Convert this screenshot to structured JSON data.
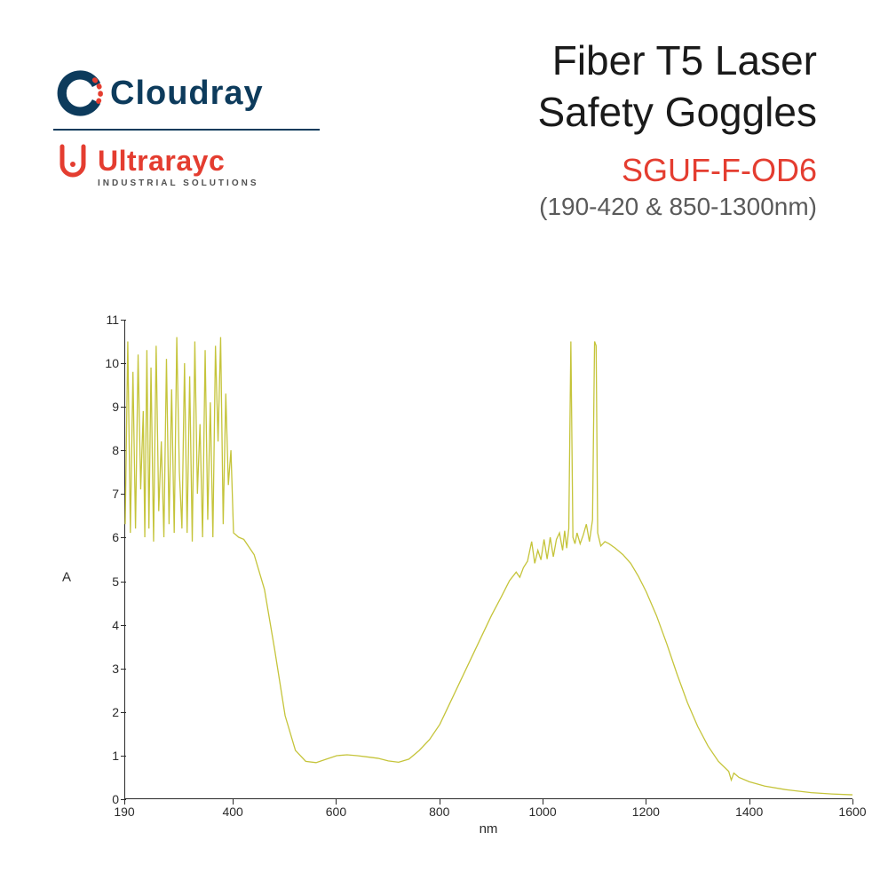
{
  "logos": {
    "cloudray": {
      "text": "Cloudray",
      "color": "#0d3b5c"
    },
    "ultrarayc": {
      "text": "Ultrarayc",
      "sub": "INDUSTRIAL SOLUTIONS",
      "color": "#e43d30"
    }
  },
  "title": {
    "line1": "Fiber T5 Laser",
    "line2": "Safety Goggles"
  },
  "product_code": "SGUF-F-OD6",
  "wavelength": "(190-420 & 850-1300nm)",
  "chart": {
    "type": "line",
    "xlabel": "nm",
    "ylabel": "A",
    "xlim": [
      190,
      1600
    ],
    "ylim": [
      0,
      11
    ],
    "x_ticks": [
      190,
      400,
      600,
      800,
      1000,
      1200,
      1400,
      1600
    ],
    "y_ticks": [
      0,
      1,
      2,
      3,
      4,
      5,
      6,
      7,
      8,
      9,
      10,
      11
    ],
    "line_color": "#c5c43a",
    "line_width": 1.3,
    "axis_color": "#2a2a2a",
    "tick_fontsize": 14,
    "label_fontsize": 15,
    "background_color": "#ffffff",
    "data": [
      [
        190,
        6.3
      ],
      [
        195,
        10.5
      ],
      [
        200,
        6.1
      ],
      [
        205,
        9.8
      ],
      [
        210,
        6.2
      ],
      [
        215,
        10.2
      ],
      [
        220,
        7.1
      ],
      [
        225,
        8.9
      ],
      [
        228,
        6.0
      ],
      [
        232,
        10.3
      ],
      [
        236,
        6.2
      ],
      [
        240,
        9.9
      ],
      [
        245,
        5.9
      ],
      [
        250,
        10.4
      ],
      [
        255,
        6.6
      ],
      [
        260,
        8.2
      ],
      [
        265,
        6.0
      ],
      [
        270,
        10.1
      ],
      [
        275,
        6.3
      ],
      [
        280,
        9.4
      ],
      [
        285,
        6.1
      ],
      [
        290,
        10.6
      ],
      [
        295,
        7.5
      ],
      [
        300,
        6.2
      ],
      [
        305,
        10.0
      ],
      [
        310,
        6.1
      ],
      [
        315,
        9.7
      ],
      [
        320,
        5.9
      ],
      [
        325,
        10.5
      ],
      [
        330,
        7.0
      ],
      [
        335,
        8.6
      ],
      [
        340,
        6.0
      ],
      [
        345,
        10.3
      ],
      [
        350,
        6.4
      ],
      [
        355,
        9.1
      ],
      [
        360,
        6.0
      ],
      [
        365,
        10.4
      ],
      [
        370,
        8.2
      ],
      [
        375,
        10.6
      ],
      [
        380,
        6.3
      ],
      [
        385,
        9.3
      ],
      [
        390,
        7.2
      ],
      [
        395,
        8.0
      ],
      [
        400,
        6.1
      ],
      [
        405,
        6.05
      ],
      [
        410,
        6.0
      ],
      [
        420,
        5.95
      ],
      [
        440,
        5.6
      ],
      [
        460,
        4.8
      ],
      [
        480,
        3.4
      ],
      [
        500,
        1.9
      ],
      [
        520,
        1.1
      ],
      [
        540,
        0.85
      ],
      [
        560,
        0.82
      ],
      [
        580,
        0.9
      ],
      [
        600,
        0.98
      ],
      [
        620,
        1.0
      ],
      [
        640,
        0.98
      ],
      [
        660,
        0.95
      ],
      [
        680,
        0.92
      ],
      [
        700,
        0.86
      ],
      [
        720,
        0.83
      ],
      [
        740,
        0.9
      ],
      [
        760,
        1.1
      ],
      [
        780,
        1.35
      ],
      [
        800,
        1.7
      ],
      [
        820,
        2.2
      ],
      [
        840,
        2.7
      ],
      [
        860,
        3.2
      ],
      [
        880,
        3.7
      ],
      [
        900,
        4.2
      ],
      [
        920,
        4.65
      ],
      [
        935,
        5.0
      ],
      [
        948,
        5.2
      ],
      [
        955,
        5.08
      ],
      [
        962,
        5.3
      ],
      [
        970,
        5.45
      ],
      [
        978,
        5.9
      ],
      [
        984,
        5.4
      ],
      [
        990,
        5.7
      ],
      [
        996,
        5.48
      ],
      [
        1002,
        5.95
      ],
      [
        1008,
        5.5
      ],
      [
        1014,
        6.0
      ],
      [
        1020,
        5.55
      ],
      [
        1026,
        5.95
      ],
      [
        1032,
        6.1
      ],
      [
        1038,
        5.7
      ],
      [
        1042,
        6.15
      ],
      [
        1046,
        5.75
      ],
      [
        1050,
        6.2
      ],
      [
        1054,
        10.5
      ],
      [
        1058,
        6.0
      ],
      [
        1062,
        5.85
      ],
      [
        1066,
        6.1
      ],
      [
        1072,
        5.85
      ],
      [
        1078,
        6.05
      ],
      [
        1084,
        6.3
      ],
      [
        1090,
        5.9
      ],
      [
        1096,
        6.4
      ],
      [
        1100,
        10.5
      ],
      [
        1103,
        10.4
      ],
      [
        1106,
        6.1
      ],
      [
        1112,
        5.8
      ],
      [
        1120,
        5.9
      ],
      [
        1128,
        5.85
      ],
      [
        1140,
        5.75
      ],
      [
        1155,
        5.6
      ],
      [
        1170,
        5.4
      ],
      [
        1185,
        5.1
      ],
      [
        1200,
        4.75
      ],
      [
        1220,
        4.2
      ],
      [
        1240,
        3.55
      ],
      [
        1260,
        2.85
      ],
      [
        1280,
        2.2
      ],
      [
        1300,
        1.65
      ],
      [
        1320,
        1.2
      ],
      [
        1340,
        0.85
      ],
      [
        1360,
        0.62
      ],
      [
        1365,
        0.42
      ],
      [
        1370,
        0.58
      ],
      [
        1380,
        0.48
      ],
      [
        1400,
        0.38
      ],
      [
        1430,
        0.28
      ],
      [
        1470,
        0.2
      ],
      [
        1520,
        0.13
      ],
      [
        1560,
        0.1
      ],
      [
        1600,
        0.08
      ]
    ]
  }
}
